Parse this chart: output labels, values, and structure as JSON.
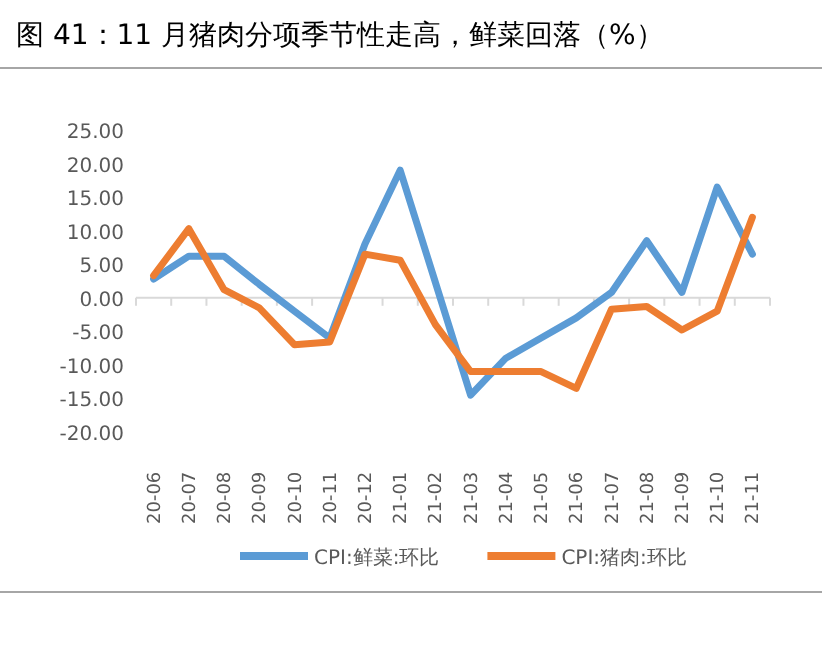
{
  "chart_data": {
    "type": "line",
    "title": "图 41：11 月猪肉分项季节性走高，鲜菜回落（%）",
    "categories": [
      "20-06",
      "20-07",
      "20-08",
      "20-09",
      "20-10",
      "20-11",
      "20-12",
      "21-01",
      "21-02",
      "21-03",
      "21-04",
      "21-05",
      "21-06",
      "21-07",
      "21-08",
      "21-09",
      "21-10",
      "21-11"
    ],
    "series": [
      {
        "name": "CPI:鲜菜:环比",
        "color": "#5b9bd5",
        "values": [
          2.8,
          6.2,
          6.2,
          2.0,
          -2.0,
          -6.0,
          8.0,
          19.0,
          2.3,
          -14.5,
          -9.0,
          -6.0,
          -3.0,
          0.8,
          8.5,
          0.8,
          16.5,
          6.5
        ]
      },
      {
        "name": "CPI:猪肉:环比",
        "color": "#ed7d31",
        "values": [
          3.3,
          10.3,
          1.2,
          -1.5,
          -7.0,
          -6.6,
          6.5,
          5.6,
          -4.0,
          -11.0,
          -11.0,
          -11.0,
          -13.5,
          -1.7,
          -1.3,
          -4.8,
          -2.0,
          12.0
        ]
      }
    ],
    "ylim": [
      -20,
      25
    ],
    "yticks": [
      {
        "value": -20,
        "label": "-20.00"
      },
      {
        "value": -15,
        "label": "-15.00"
      },
      {
        "value": -10,
        "label": "-10.00"
      },
      {
        "value": -5,
        "label": "-5.00"
      },
      {
        "value": 0,
        "label": "0.00"
      },
      {
        "value": 5,
        "label": "5.00"
      },
      {
        "value": 10,
        "label": "10.00"
      },
      {
        "value": 15,
        "label": "15.00"
      },
      {
        "value": 20,
        "label": "20.00"
      },
      {
        "value": 25,
        "label": "25.00"
      }
    ],
    "legend": "bottom",
    "marker": "none",
    "line_style": "solid"
  }
}
